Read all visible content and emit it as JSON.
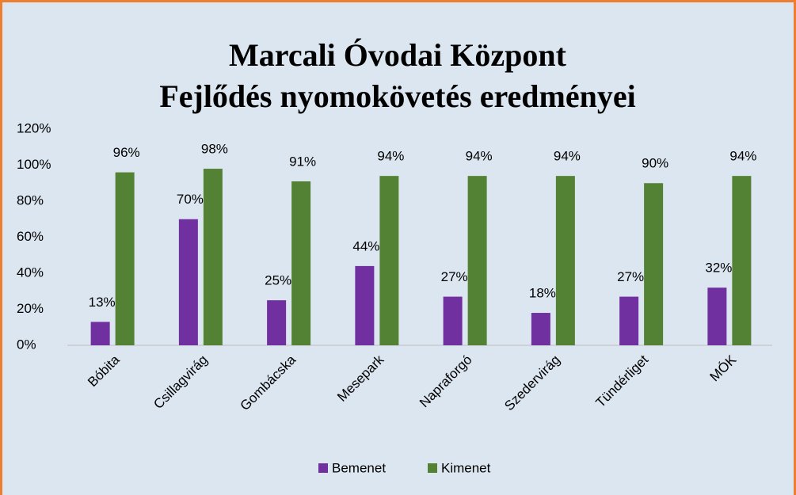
{
  "chart_data": {
    "type": "bar",
    "title": [
      "Marcali Óvodai Központ",
      "Fejlődés nyomokövetés eredményei"
    ],
    "categories": [
      "Bóbita",
      "Csillagvirág",
      "Gombácska",
      "Mesepark",
      "Napraforgó",
      "Szedervirág",
      "Tündérliget",
      "MÓK"
    ],
    "series": [
      {
        "name": "Bemenet",
        "color": "#7030a0",
        "values": [
          13,
          70,
          25,
          44,
          27,
          18,
          27,
          32
        ],
        "value_labels": [
          "13%",
          "70%",
          "25%",
          "44%",
          "27%",
          "18%",
          "27%",
          "32%"
        ]
      },
      {
        "name": "Kimenet",
        "color": "#548235",
        "values": [
          96,
          98,
          91,
          94,
          94,
          94,
          90,
          94
        ],
        "value_labels": [
          "96%",
          "98%",
          "91%",
          "94%",
          "94%",
          "94%",
          "90%",
          "94%"
        ]
      }
    ],
    "ylim": [
      0,
      120
    ],
    "yticks": [
      {
        "value": 0,
        "label": "0%"
      },
      {
        "value": 20,
        "label": "20%"
      },
      {
        "value": 40,
        "label": "40%"
      },
      {
        "value": 60,
        "label": "60%"
      },
      {
        "value": 80,
        "label": "80%"
      },
      {
        "value": 100,
        "label": "100%"
      },
      {
        "value": 120,
        "label": "120%"
      }
    ],
    "grid": false,
    "legend": "bottom"
  }
}
